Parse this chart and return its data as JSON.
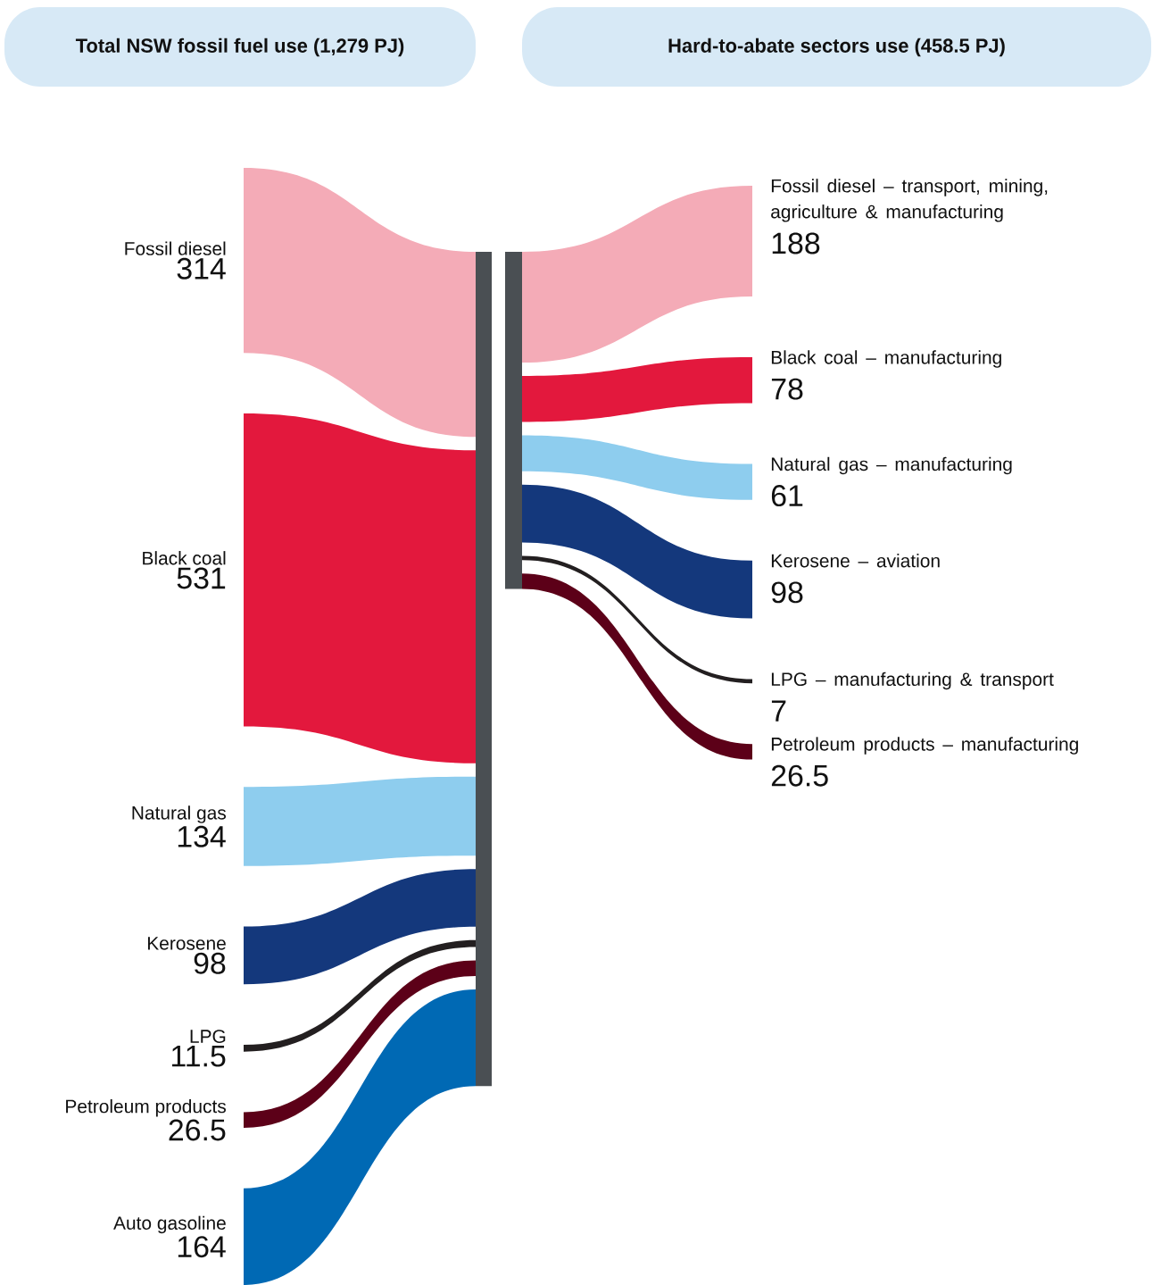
{
  "chart_data": [
    {
      "type": "other",
      "title": "Total NSW fossil fuel use (1,279 PJ)",
      "data_labels": true,
      "categories": [
        "Fossil diesel",
        "Black coal",
        "Natural gas",
        "Kerosene",
        "LPG",
        "Petroleum products",
        "Auto gasoline"
      ],
      "values": [
        314,
        531,
        134,
        98,
        11.5,
        26.5,
        164
      ],
      "colors": [
        "#f4abb7",
        "#e3183d",
        "#8ecdee",
        "#14387c",
        "#231f20",
        "#5c0018",
        "#0069b4"
      ]
    },
    {
      "type": "other",
      "title": "Hard-to-abate sectors use (458.5 PJ)",
      "data_labels": true,
      "categories": [
        "Fossil diesel – transport, mining, agriculture & manufacturing",
        "Black coal – manufacturing",
        "Natural gas – manufacturing",
        "Kerosene – aviation",
        "LPG – manufacturing & transport",
        "Petroleum products – manufacturing"
      ],
      "values": [
        188,
        78,
        61,
        98,
        7,
        26.5
      ],
      "colors": [
        "#f4abb7",
        "#e3183d",
        "#8ecdee",
        "#14387c",
        "#231f20",
        "#5c0018"
      ]
    }
  ]
}
